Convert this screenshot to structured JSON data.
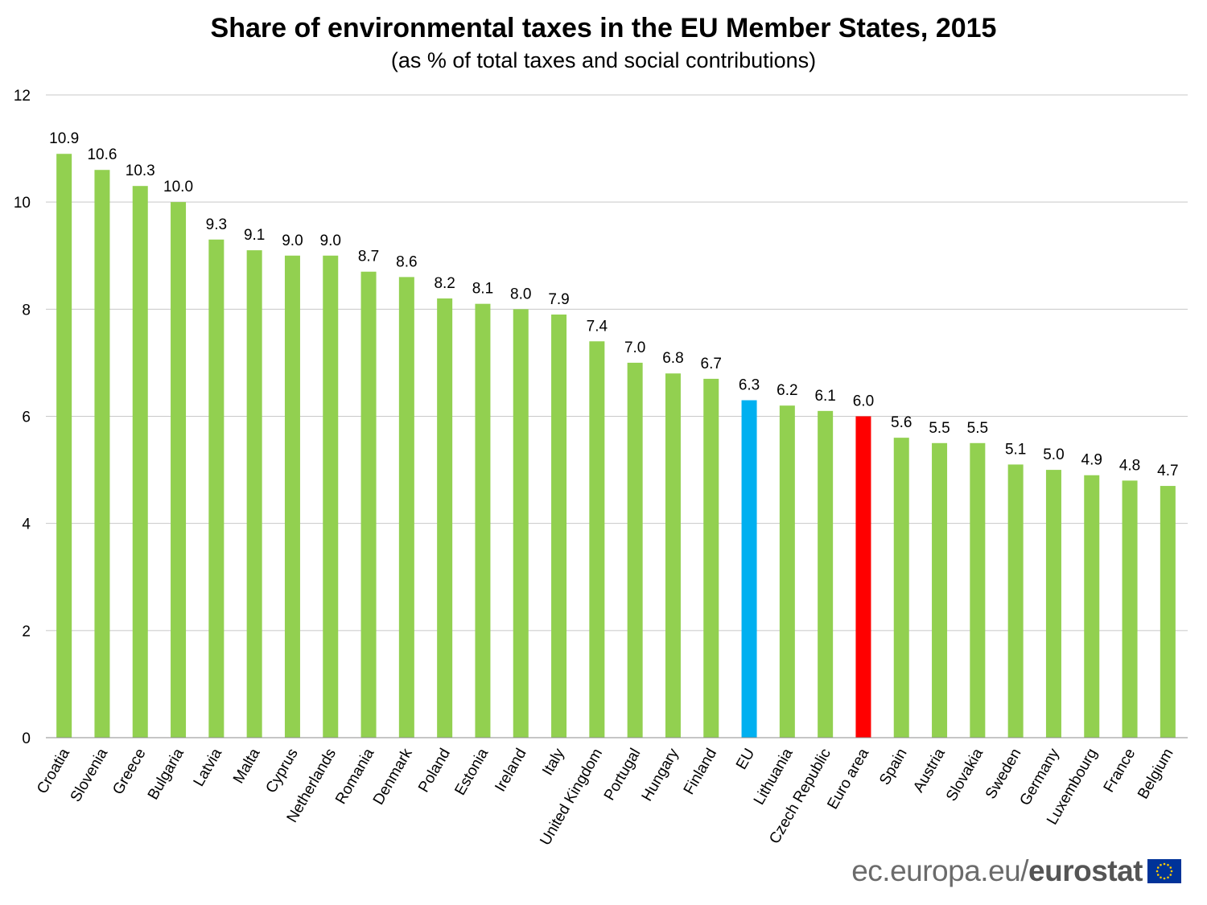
{
  "chart_data": {
    "type": "bar",
    "title": "Share of environmental taxes in the EU Member States, 2015",
    "subtitle": "(as % of total taxes and social contributions)",
    "categories": [
      "Croatia",
      "Slovenia",
      "Greece",
      "Bulgaria",
      "Latvia",
      "Malta",
      "Cyprus",
      "Netherlands",
      "Romania",
      "Denmark",
      "Poland",
      "Estonia",
      "Ireland",
      "Italy",
      "United Kingdom",
      "Portugal",
      "Hungary",
      "Finland",
      "EU",
      "Lithuania",
      "Czech Republic",
      "Euro area",
      "Spain",
      "Austria",
      "Slovakia",
      "Sweden",
      "Germany",
      "Luxembourg",
      "France",
      "Belgium"
    ],
    "values": [
      10.9,
      10.6,
      10.3,
      10.0,
      9.3,
      9.1,
      9.0,
      9.0,
      8.7,
      8.6,
      8.2,
      8.1,
      8.0,
      7.9,
      7.4,
      7.0,
      6.8,
      6.7,
      6.3,
      6.2,
      6.1,
      6.0,
      5.6,
      5.5,
      5.5,
      5.1,
      5.0,
      4.9,
      4.8,
      4.7
    ],
    "value_labels": [
      "10.9",
      "10.6",
      "10.3",
      "10.0",
      "9.3",
      "9.1",
      "9.0",
      "9.0",
      "8.7",
      "8.6",
      "8.2",
      "8.1",
      "8.0",
      "7.9",
      "7.4",
      "7.0",
      "6.8",
      "6.7",
      "6.3",
      "6.2",
      "6.1",
      "6.0",
      "5.6",
      "5.5",
      "5.5",
      "5.1",
      "5.0",
      "4.9",
      "4.8",
      "4.7"
    ],
    "ylim": [
      0,
      12
    ],
    "yticks": [
      0,
      2,
      4,
      6,
      8,
      10,
      12
    ],
    "grid": true,
    "legend": "none",
    "colors": {
      "default": "#92d050",
      "EU": "#00b0f0",
      "Euro area": "#ff0000",
      "grid": "#c8c8c8"
    }
  },
  "footer": {
    "site": "ec.europa.eu/",
    "brand": "eurostat",
    "flag_icon": "eu-flag-icon"
  }
}
